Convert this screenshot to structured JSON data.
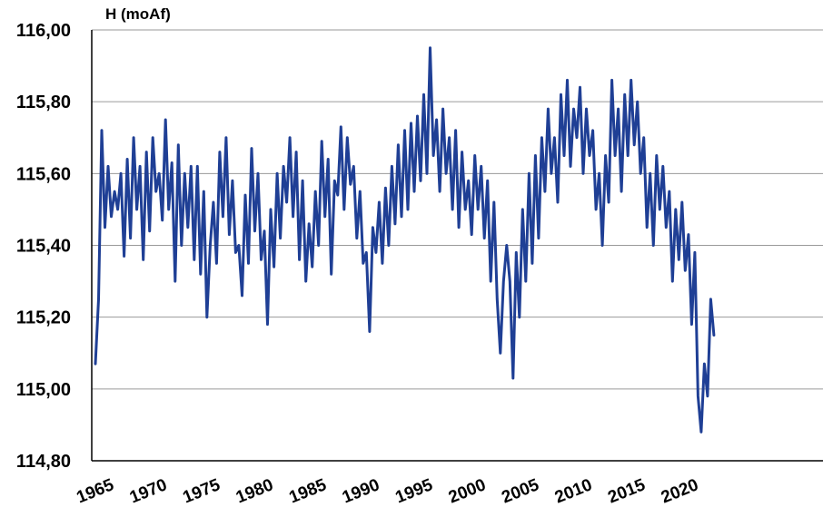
{
  "chart_data": {
    "type": "line",
    "title": "",
    "ylabel": "H (moAf)",
    "xlabel": "",
    "xlim": [
      1965,
      2023.2
    ],
    "ylim": [
      114.8,
      116.0
    ],
    "y_ticks": [
      {
        "value": 114.8,
        "label": "114,80"
      },
      {
        "value": 115.0,
        "label": "115,00"
      },
      {
        "value": 115.2,
        "label": "115,20"
      },
      {
        "value": 115.4,
        "label": "115,40"
      },
      {
        "value": 115.6,
        "label": "115,60"
      },
      {
        "value": 115.8,
        "label": "115,80"
      },
      {
        "value": 116.0,
        "label": "116,00"
      }
    ],
    "x_ticks": [
      {
        "value": 1965,
        "label": "1965"
      },
      {
        "value": 1970,
        "label": "1970"
      },
      {
        "value": 1975,
        "label": "1975"
      },
      {
        "value": 1980,
        "label": "1980"
      },
      {
        "value": 1985,
        "label": "1985"
      },
      {
        "value": 1990,
        "label": "1990"
      },
      {
        "value": 1995,
        "label": "1995"
      },
      {
        "value": 2000,
        "label": "2000"
      },
      {
        "value": 2005,
        "label": "2005"
      },
      {
        "value": 2010,
        "label": "2010"
      },
      {
        "value": 2015,
        "label": "2015"
      },
      {
        "value": 2020,
        "label": "2020"
      }
    ],
    "grid": {
      "horizontal": true,
      "vertical": false
    },
    "legend": "none",
    "colors": {
      "series": "#1f3f95",
      "grid": "#9a9a9a",
      "axis": "#000000"
    },
    "series": [
      {
        "x": [
          1965.0,
          1965.3,
          1965.6,
          1965.9,
          1966.2,
          1966.5,
          1966.8,
          1967.1,
          1967.4,
          1967.7,
          1968.0,
          1968.3,
          1968.6,
          1968.9,
          1969.2,
          1969.5,
          1969.8,
          1970.1,
          1970.4,
          1970.7,
          1971.0,
          1971.3,
          1971.6,
          1971.9,
          1972.2,
          1972.5,
          1972.8,
          1973.1,
          1973.4,
          1973.7,
          1974.0,
          1974.3,
          1974.6,
          1974.9,
          1975.2,
          1975.5,
          1975.8,
          1976.1,
          1976.4,
          1976.7,
          1977.0,
          1977.3,
          1977.6,
          1977.9,
          1978.2,
          1978.5,
          1978.8,
          1979.1,
          1979.4,
          1979.7,
          1980.0,
          1980.3,
          1980.6,
          1980.9,
          1981.2,
          1981.5,
          1981.8,
          1982.1,
          1982.4,
          1982.7,
          1983.0,
          1983.3,
          1983.6,
          1983.9,
          1984.2,
          1984.5,
          1984.8,
          1985.1,
          1985.4,
          1985.7,
          1986.0,
          1986.3,
          1986.6,
          1986.9,
          1987.2,
          1987.5,
          1987.8,
          1988.1,
          1988.4,
          1988.7,
          1989.0,
          1989.3,
          1989.6,
          1989.9,
          1990.2,
          1990.5,
          1990.8,
          1991.1,
          1991.4,
          1991.7,
          1992.0,
          1992.3,
          1992.6,
          1992.9,
          1993.2,
          1993.5,
          1993.8,
          1994.1,
          1994.4,
          1994.7,
          1995.0,
          1995.3,
          1995.6,
          1995.9,
          1996.2,
          1996.5,
          1996.8,
          1997.1,
          1997.4,
          1997.7,
          1998.0,
          1998.3,
          1998.6,
          1998.9,
          1999.2,
          1999.5,
          1999.8,
          2000.1,
          2000.4,
          2000.7,
          2001.0,
          2001.3,
          2001.6,
          2001.9,
          2002.2,
          2002.5,
          2002.8,
          2003.1,
          2003.4,
          2003.7,
          2004.0,
          2004.3,
          2004.6,
          2004.9,
          2005.2,
          2005.5,
          2005.8,
          2006.1,
          2006.4,
          2006.7,
          2007.0,
          2007.3,
          2007.6,
          2007.9,
          2008.2,
          2008.5,
          2008.8,
          2009.1,
          2009.4,
          2009.7,
          2010.0,
          2010.3,
          2010.6,
          2010.9,
          2011.2,
          2011.5,
          2011.8,
          2012.1,
          2012.4,
          2012.7,
          2013.0,
          2013.3,
          2013.6,
          2013.9,
          2014.2,
          2014.5,
          2014.8,
          2015.1,
          2015.4,
          2015.7,
          2016.0,
          2016.3,
          2016.6,
          2016.9,
          2017.2,
          2017.5,
          2017.8,
          2018.1,
          2018.4,
          2018.7,
          2019.0,
          2019.3,
          2019.6,
          2019.9,
          2020.2,
          2020.5,
          2020.8,
          2021.1,
          2021.4,
          2021.7,
          2022.0,
          2022.3,
          2022.6,
          2022.9,
          2023.2
        ],
        "values": [
          115.07,
          115.25,
          115.72,
          115.45,
          115.62,
          115.48,
          115.55,
          115.5,
          115.6,
          115.37,
          115.64,
          115.42,
          115.7,
          115.5,
          115.62,
          115.36,
          115.66,
          115.44,
          115.7,
          115.55,
          115.6,
          115.47,
          115.75,
          115.5,
          115.63,
          115.3,
          115.68,
          115.4,
          115.6,
          115.45,
          115.62,
          115.36,
          115.62,
          115.32,
          115.55,
          115.2,
          115.4,
          115.52,
          115.35,
          115.66,
          115.48,
          115.7,
          115.43,
          115.58,
          115.38,
          115.4,
          115.26,
          115.54,
          115.35,
          115.67,
          115.44,
          115.6,
          115.36,
          115.44,
          115.18,
          115.5,
          115.34,
          115.6,
          115.42,
          115.62,
          115.52,
          115.7,
          115.48,
          115.66,
          115.36,
          115.58,
          115.3,
          115.46,
          115.34,
          115.55,
          115.4,
          115.69,
          115.48,
          115.64,
          115.32,
          115.58,
          115.54,
          115.73,
          115.5,
          115.7,
          115.57,
          115.62,
          115.42,
          115.55,
          115.35,
          115.38,
          115.16,
          115.45,
          115.38,
          115.52,
          115.35,
          115.56,
          115.4,
          115.62,
          115.46,
          115.68,
          115.48,
          115.72,
          115.5,
          115.74,
          115.55,
          115.76,
          115.58,
          115.82,
          115.6,
          115.95,
          115.65,
          115.75,
          115.55,
          115.78,
          115.6,
          115.7,
          115.5,
          115.72,
          115.45,
          115.66,
          115.5,
          115.58,
          115.43,
          115.65,
          115.5,
          115.62,
          115.42,
          115.58,
          115.3,
          115.52,
          115.25,
          115.1,
          115.3,
          115.4,
          115.3,
          115.03,
          115.38,
          115.2,
          115.5,
          115.3,
          115.6,
          115.35,
          115.65,
          115.42,
          115.7,
          115.55,
          115.78,
          115.6,
          115.7,
          115.52,
          115.82,
          115.65,
          115.86,
          115.62,
          115.78,
          115.7,
          115.84,
          115.6,
          115.78,
          115.65,
          115.72,
          115.5,
          115.6,
          115.4,
          115.65,
          115.52,
          115.86,
          115.65,
          115.78,
          115.55,
          115.82,
          115.65,
          115.86,
          115.68,
          115.8,
          115.6,
          115.7,
          115.45,
          115.6,
          115.4,
          115.65,
          115.5,
          115.62,
          115.45,
          115.55,
          115.3,
          115.5,
          115.36,
          115.52,
          115.33,
          115.43,
          115.18,
          115.38,
          114.98,
          114.88,
          115.07,
          114.98,
          115.25,
          115.15
        ]
      }
    ]
  }
}
